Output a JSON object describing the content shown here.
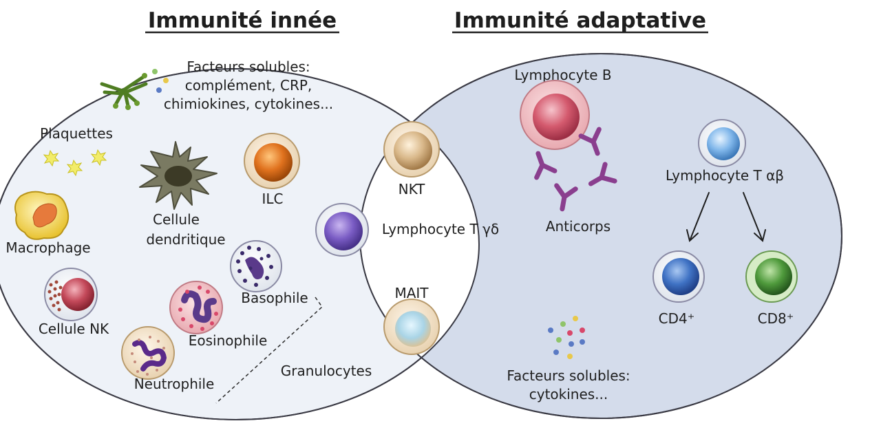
{
  "titles": {
    "innate": "Immunité innée",
    "adaptive": "Immunité adaptative"
  },
  "innate": {
    "soluble_factors": [
      "Facteurs solubles:",
      "complément, CRP,",
      "chimiokines, cytokines..."
    ],
    "platelets": "Plaquettes",
    "dendritic": [
      "Cellule",
      "dendritique"
    ],
    "ilc": "ILC",
    "macrophage": "Macrophage",
    "basophil": "Basophile",
    "nk_cell": "Cellule NK",
    "eosinophil": "Eosinophile",
    "neutrophil": "Neutrophile",
    "granulocytes": "Granulocytes"
  },
  "overlap": {
    "nkt": "NKT",
    "t_gamma_delta": "Lymphocyte T γδ",
    "mait": "MAIT"
  },
  "adaptive": {
    "b_lymphocyte": "Lymphocyte B",
    "t_alpha_beta": "Lymphocyte T αβ",
    "antibodies": "Anticorps",
    "cd4": "CD4⁺",
    "cd8": "CD8⁺",
    "soluble_factors": [
      "Facteurs solubles:",
      "cytokines..."
    ]
  },
  "colors": {
    "innate_bg": "#eef2f8",
    "adaptive_bg": "#d4dceb",
    "overlap_bg": "#ffffff",
    "outline": "#3a3a44",
    "b_cell": "#d45a6e",
    "t_cell": "#7fb6ea",
    "cd4": "#3f72c4",
    "cd8": "#4f9a3c",
    "ilc": "#e0721e",
    "gamma_delta": "#7a5cc4",
    "nkt": "#d9b88a",
    "mait": "#a9d4e6",
    "antibody": "#8a3e8e"
  }
}
